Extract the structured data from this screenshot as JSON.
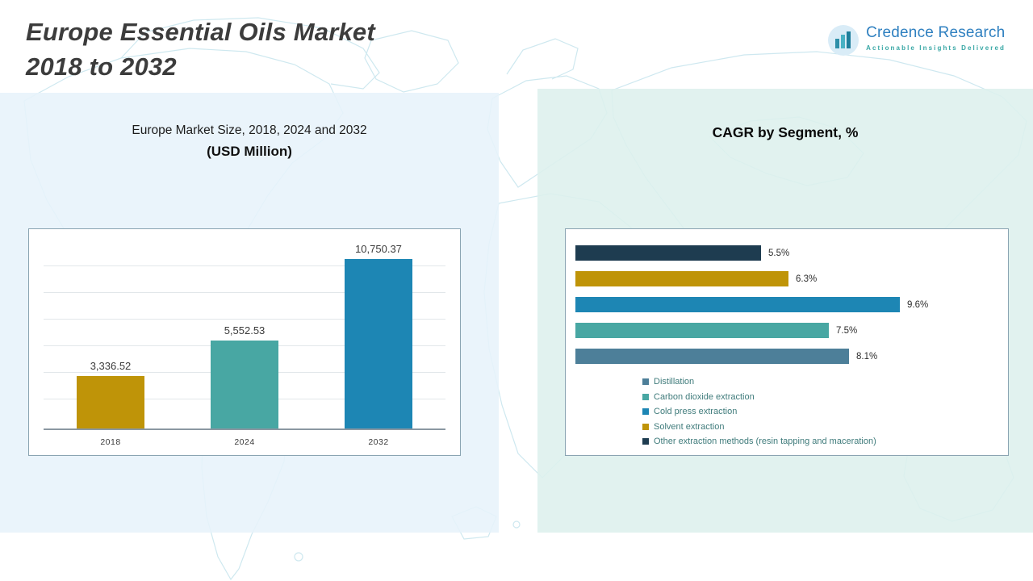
{
  "header": {
    "title_line1": "Europe Essential Oils Market",
    "title_line2": "2018 to 2032"
  },
  "logo": {
    "name": "Credence Research",
    "tagline": "Actionable Insights Delivered"
  },
  "left_panel": {
    "chart_title_line1": "Europe Market Size, 2018, 2024 and 2032",
    "chart_title_line2": "(USD Million)"
  },
  "right_panel": {
    "chart_title": "CAGR by Segment, %"
  },
  "chart_data": [
    {
      "type": "bar",
      "orientation": "vertical",
      "title": "Europe Market Size, 2018, 2024 and 2032 (USD Million)",
      "categories": [
        "2018",
        "2024",
        "2032"
      ],
      "values": [
        3336.52,
        5552.53,
        10750.37
      ],
      "value_labels": [
        "3,336.52",
        "5,552.53",
        "10,750.37"
      ],
      "bar_colors": [
        "#bf9408",
        "#48a7a3",
        "#1d86b4"
      ],
      "xlabel": "",
      "ylabel": "",
      "ylim": [
        0,
        11000
      ],
      "grid": true,
      "legend_position": "none"
    },
    {
      "type": "bar",
      "orientation": "horizontal",
      "title": "CAGR by Segment, %",
      "categories": [
        "Other extraction methods (resin tapping and maceration)",
        "Solvent extraction",
        "Cold press extraction",
        "Carbon dioxide extraction",
        "Distillation"
      ],
      "values": [
        5.5,
        6.3,
        9.6,
        7.5,
        8.1
      ],
      "value_labels": [
        "5.5%",
        "6.3%",
        "9.6%",
        "7.5%",
        "8.1%"
      ],
      "bar_colors": [
        "#1e3c50",
        "#bf9408",
        "#1d86b4",
        "#48a7a3",
        "#4d7f99"
      ],
      "xlabel": "",
      "ylabel": "",
      "xlim": [
        0,
        10.5
      ],
      "grid": false,
      "legend_position": "bottom-left",
      "legend": [
        {
          "label": "Distillation",
          "color": "#4d7f99"
        },
        {
          "label": "Carbon dioxide extraction",
          "color": "#48a7a3"
        },
        {
          "label": "Cold press extraction",
          "color": "#1d86b4"
        },
        {
          "label": "Solvent extraction",
          "color": "#bf9408"
        },
        {
          "label": "Other extraction methods (resin tapping and maceration)",
          "color": "#1e3c50"
        }
      ]
    }
  ]
}
